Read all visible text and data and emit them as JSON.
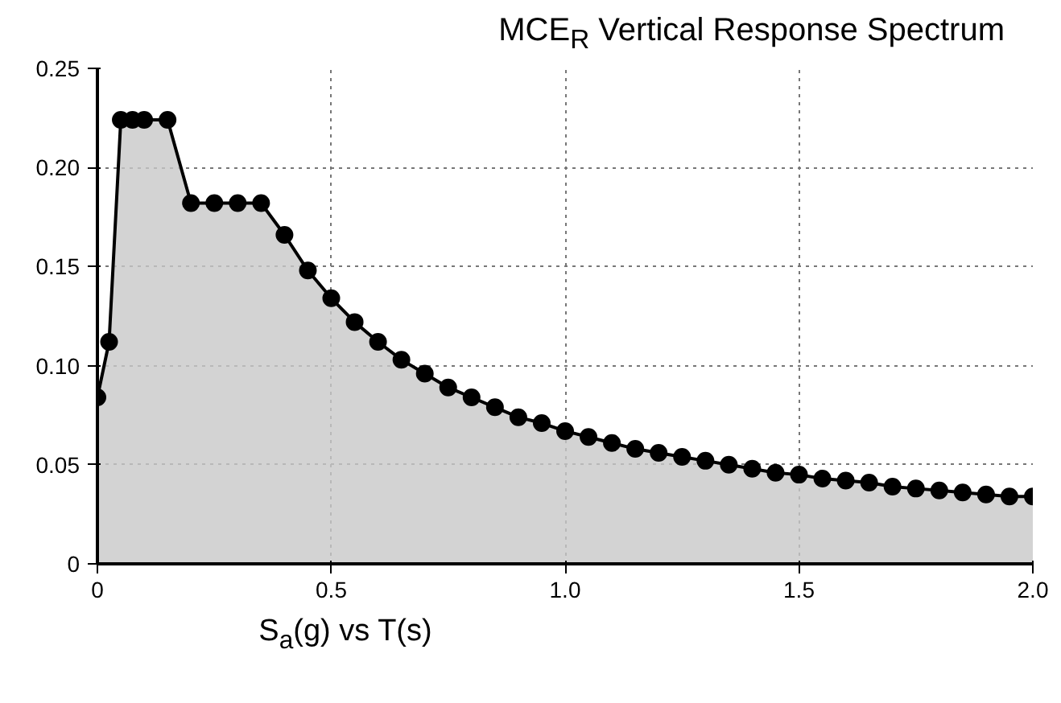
{
  "chart_data": {
    "type": "area",
    "title": "MCE$_{R}$ Vertical Response Spectrum",
    "xlabel": "S$_{a}$(g) vs T(s)",
    "x": [
      0,
      0.025,
      0.05,
      0.075,
      0.1,
      0.15,
      0.2,
      0.25,
      0.3,
      0.35,
      0.4,
      0.45,
      0.5,
      0.55,
      0.6,
      0.65,
      0.7,
      0.75,
      0.8,
      0.85,
      0.9,
      0.95,
      1.0,
      1.05,
      1.1,
      1.15,
      1.2,
      1.25,
      1.3,
      1.35,
      1.4,
      1.45,
      1.5,
      1.55,
      1.6,
      1.65,
      1.7,
      1.75,
      1.8,
      1.85,
      1.9,
      1.95,
      2.0
    ],
    "series": [
      {
        "color": "#000000",
        "values": [
          0.084,
          0.112,
          0.224,
          0.224,
          0.224,
          0.224,
          0.182,
          0.182,
          0.182,
          0.182,
          0.166,
          0.148,
          0.134,
          0.122,
          0.112,
          0.103,
          0.096,
          0.089,
          0.084,
          0.079,
          0.074,
          0.071,
          0.067,
          0.064,
          0.061,
          0.058,
          0.056,
          0.054,
          0.052,
          0.05,
          0.048,
          0.046,
          0.045,
          0.043,
          0.042,
          0.041,
          0.039,
          0.038,
          0.037,
          0.036,
          0.035,
          0.034,
          0.034
        ]
      }
    ],
    "xlim": [
      0,
      2.0
    ],
    "ylim": [
      0,
      0.25
    ],
    "xticks": [
      0,
      0.5,
      {
        "value": 1.0,
        "label": "1.0"
      },
      1.5,
      {
        "value": 2.0,
        "label": "2.0"
      }
    ],
    "yticks": [
      0,
      {
        "value": 0.05,
        "label": "0.05"
      },
      {
        "value": 0.1,
        "label": "0.10"
      },
      0.15,
      {
        "value": 0.2,
        "label": "0.20"
      },
      0.25
    ],
    "grid": true,
    "marker": "circle",
    "line_style": "solid"
  }
}
